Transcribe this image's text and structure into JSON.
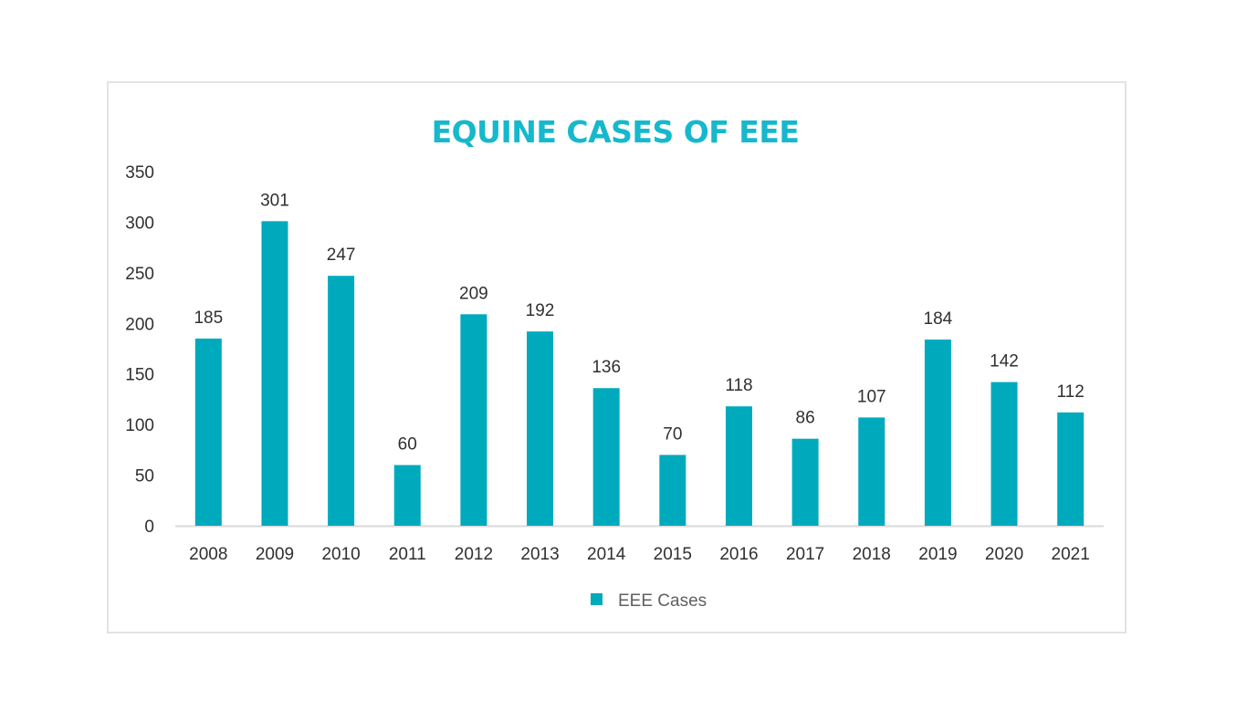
{
  "chart_data": {
    "type": "bar",
    "title": "EQUINE CASES OF EEE",
    "categories": [
      "2008",
      "2009",
      "2010",
      "2011",
      "2012",
      "2013",
      "2014",
      "2015",
      "2016",
      "2017",
      "2018",
      "2019",
      "2020",
      "2021"
    ],
    "series": [
      {
        "name": "EEE Cases",
        "values": [
          185,
          301,
          247,
          60,
          209,
          192,
          136,
          70,
          118,
          86,
          107,
          184,
          142,
          112
        ],
        "color": "#00aabd"
      }
    ],
    "ylim": [
      0,
      350
    ],
    "yticks": [
      0,
      50,
      100,
      150,
      200,
      250,
      300,
      350
    ],
    "xlabel": "",
    "ylabel": "",
    "grid": false,
    "legend_position": "bottom",
    "data_labels": true,
    "title_color": "#16b8cc",
    "axis_color": "#d9d9d9"
  }
}
